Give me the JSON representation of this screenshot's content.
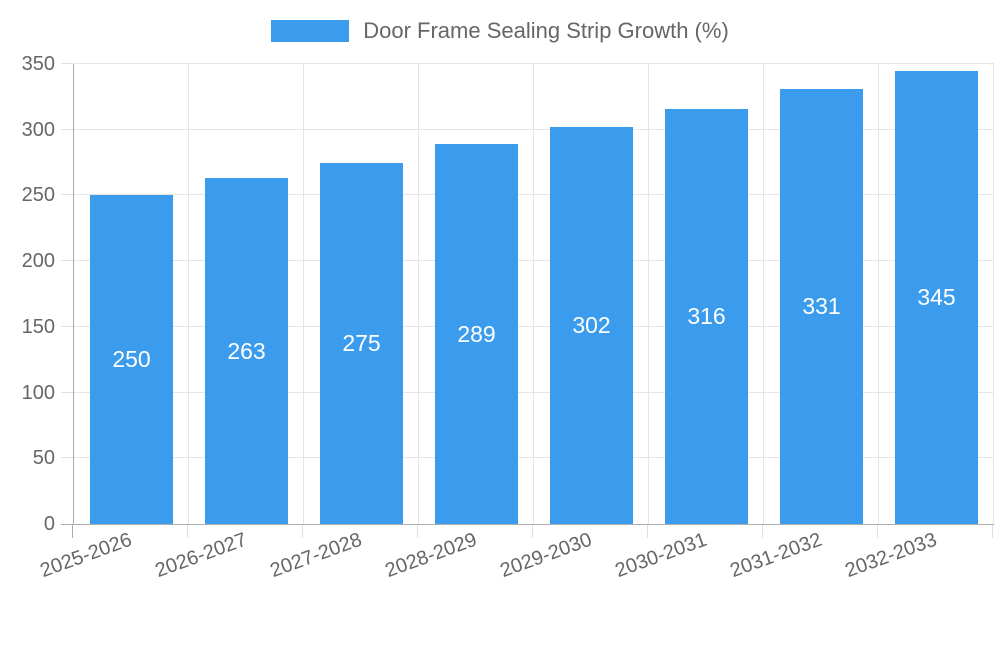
{
  "chart": {
    "legend": {
      "label": "Door Frame Sealing Strip Growth (%)"
    },
    "colors": {
      "bar": "#3b9cee",
      "axis_text": "#666666",
      "grid_line": "#e5e5e5",
      "zero_line": "#ababab",
      "value_label": "#ffffff",
      "background": "#ffffff"
    }
  },
  "chart_data": {
    "type": "bar",
    "title": "Door Frame Sealing Strip Growth (%)",
    "categories": [
      "2025-2026",
      "2026-2027",
      "2027-2028",
      "2028-2029",
      "2029-2030",
      "2030-2031",
      "2031-2032",
      "2032-2033"
    ],
    "values": [
      250,
      263,
      275,
      289,
      302,
      316,
      331,
      345
    ],
    "xlabel": "",
    "ylabel": "",
    "ylim": [
      0,
      350
    ],
    "y_ticks": [
      0,
      50,
      100,
      150,
      200,
      250,
      300,
      350
    ],
    "grid": "on",
    "legend_position": "top",
    "value_labels": "inside-center",
    "x_label_rotation_deg": -20
  }
}
